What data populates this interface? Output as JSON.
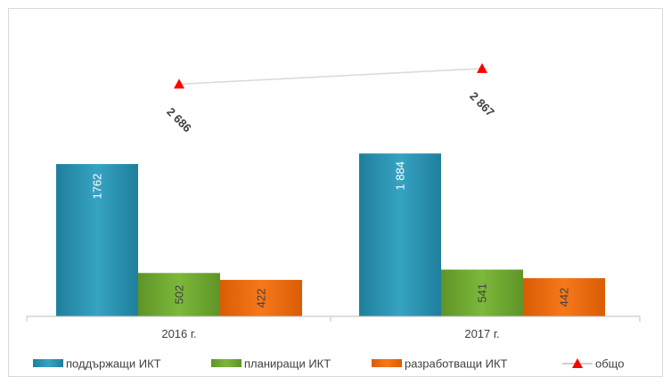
{
  "chart_data": {
    "type": "bar",
    "categories": [
      "2016 г.",
      "2017 г."
    ],
    "series": [
      {
        "name": "поддържащи ИКТ",
        "values": [
          1762,
          1884
        ],
        "labels": [
          "1762",
          "1 884"
        ],
        "color": "#2f96b4",
        "kind": "bar"
      },
      {
        "name": "планиращи ИКТ",
        "values": [
          502,
          541
        ],
        "labels": [
          "502",
          "541"
        ],
        "color": "#70a82f",
        "kind": "bar"
      },
      {
        "name": "разработващи ИКТ",
        "values": [
          422,
          442
        ],
        "labels": [
          "422",
          "442"
        ],
        "color": "#f06c0b",
        "kind": "bar"
      },
      {
        "name": "общо",
        "values": [
          2686,
          2867
        ],
        "labels": [
          "2 686",
          "2 867"
        ],
        "color": "#ff0000",
        "kind": "line-marker"
      }
    ],
    "ylim": [
      0,
      3350
    ],
    "grid": false,
    "legend_position": "bottom"
  }
}
